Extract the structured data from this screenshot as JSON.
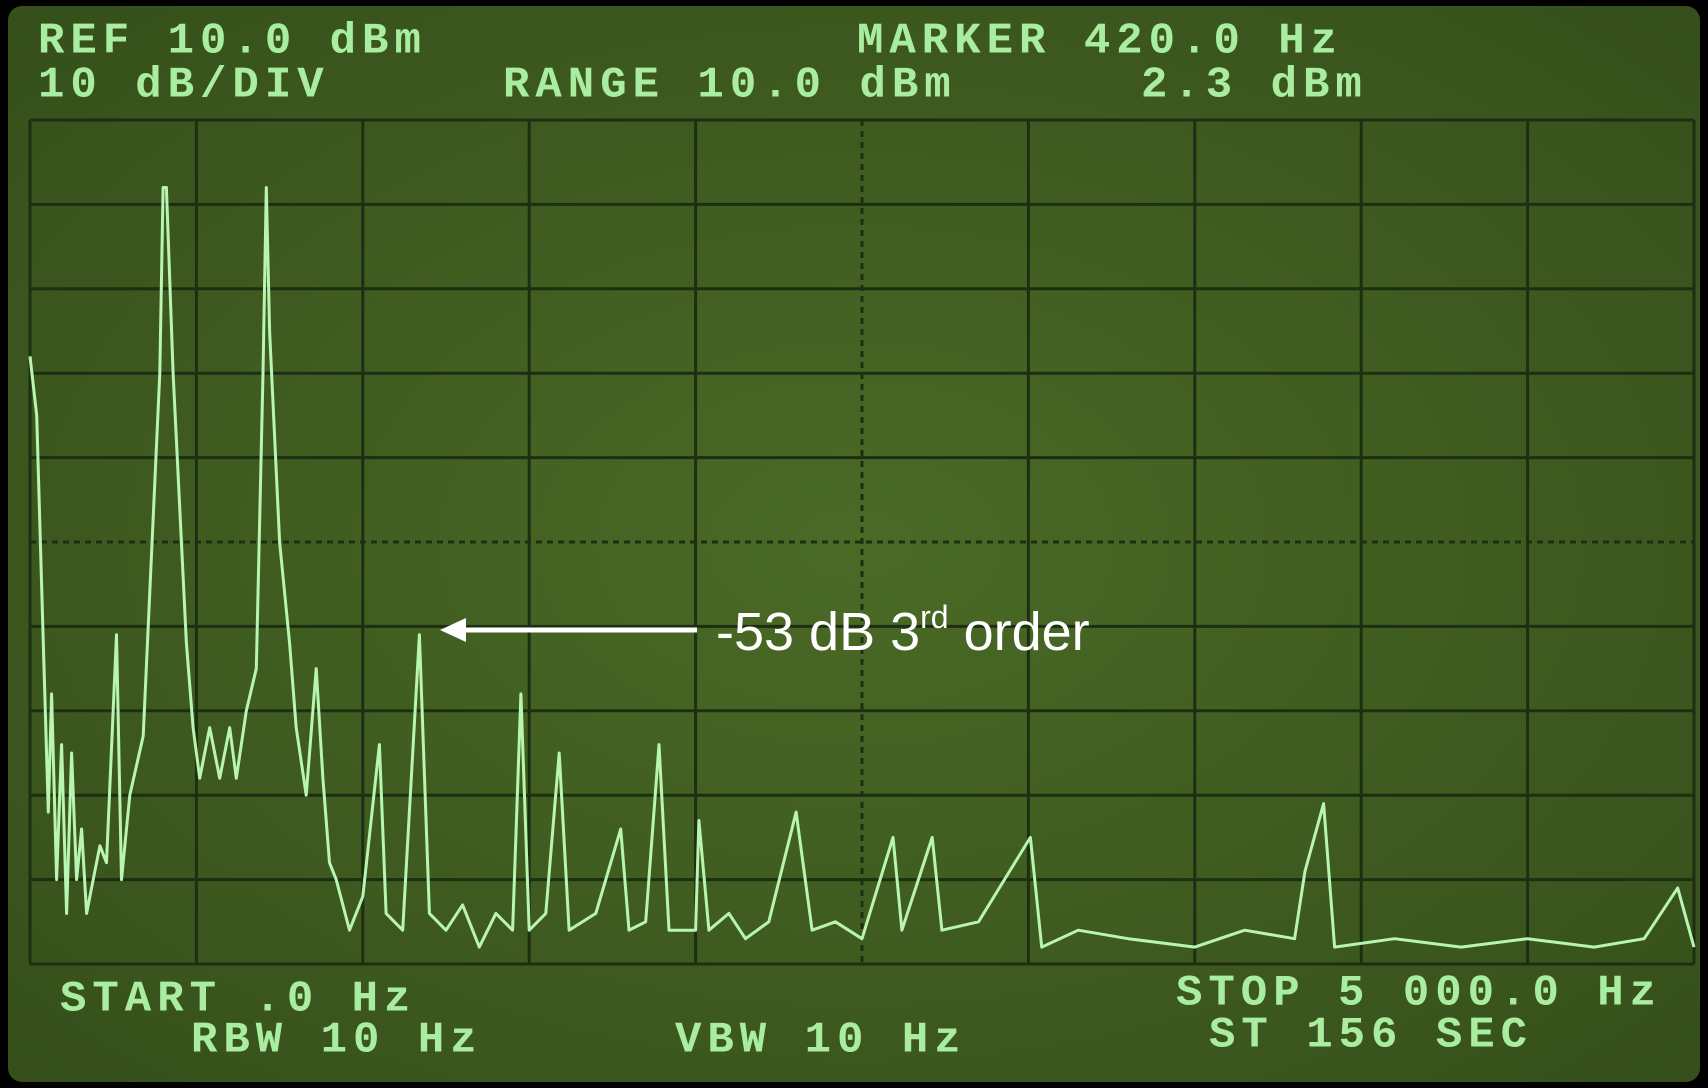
{
  "chart_data": {
    "type": "line",
    "screen_text": {
      "ref": "REF 10.0 dBm",
      "scale": "10 dB/DIV",
      "range": "RANGE 10.0 dBm",
      "marker": "MARKER 420.0 Hz",
      "marker_level": "2.3 dBm",
      "start": "START .0 Hz",
      "rbw": "RBW 10 Hz",
      "vbw": "VBW 10 Hz",
      "stop": "STOP 5 000.0 Hz",
      "sweep": "ST 156 SEC"
    },
    "annotation": {
      "text": "-53 dB 3",
      "superscript": "rd",
      "suffix": " order"
    },
    "xlim": [
      0,
      5000
    ],
    "ylim": [
      -90,
      10
    ],
    "xticks": [
      0,
      500,
      1000,
      1500,
      2000,
      2500,
      3000,
      3500,
      4000,
      4500,
      5000
    ],
    "yticks": [
      -90,
      -80,
      -70,
      -60,
      -50,
      -40,
      -30,
      -20,
      -10,
      0,
      10
    ],
    "grid": true,
    "color": "#b8f5b0",
    "x": [
      0,
      20,
      40,
      55,
      65,
      80,
      95,
      110,
      125,
      140,
      155,
      170,
      190,
      210,
      230,
      260,
      275,
      300,
      340,
      390,
      400,
      410,
      430,
      470,
      490,
      510,
      540,
      570,
      600,
      620,
      650,
      680,
      700,
      710,
      720,
      750,
      780,
      800,
      830,
      860,
      880,
      900,
      920,
      960,
      1000,
      1050,
      1070,
      1120,
      1170,
      1200,
      1250,
      1300,
      1350,
      1400,
      1450,
      1475,
      1500,
      1550,
      1590,
      1620,
      1700,
      1775,
      1800,
      1850,
      1890,
      1920,
      2000,
      2010,
      2040,
      2100,
      2150,
      2220,
      2302,
      2350,
      2420,
      2500,
      2593,
      2620,
      2711,
      2740,
      2850,
      3006,
      3040,
      3150,
      3300,
      3500,
      3650,
      3800,
      3831,
      3887,
      3920,
      4100,
      4300,
      4500,
      4700,
      4850,
      4951,
      5000
    ],
    "values": [
      -18,
      -25,
      -52,
      -72,
      -58,
      -80,
      -64,
      -84,
      -65,
      -80,
      -74,
      -84,
      -80,
      -76,
      -78,
      -51,
      -80,
      -70,
      -63,
      -20,
      2,
      2,
      -20,
      -52,
      -62,
      -68,
      -62,
      -68,
      -62,
      -68,
      -60,
      -55,
      -20,
      2,
      -15,
      -40,
      -52,
      -62,
      -70,
      -55,
      -68,
      -78,
      -80,
      -86,
      -82,
      -64,
      -84,
      -86,
      -51,
      -84,
      -86,
      -83,
      -88,
      -84,
      -86,
      -58,
      -86,
      -84,
      -65,
      -86,
      -84,
      -74,
      -86,
      -85,
      -64,
      -86,
      -86,
      -73,
      -86,
      -84,
      -87,
      -85,
      -72,
      -86,
      -85,
      -87,
      -75,
      -86,
      -75,
      -86,
      -85,
      -75,
      -88,
      -86,
      -87,
      -88,
      -86,
      -87,
      -79,
      -71,
      -88,
      -87,
      -88,
      -87,
      -88,
      -87,
      -81,
      -88
    ]
  }
}
